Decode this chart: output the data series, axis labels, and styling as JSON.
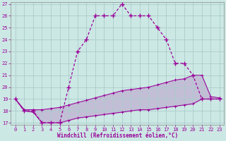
{
  "xlabel": "Windchill (Refroidissement éolien,°C)",
  "hours": [
    0,
    1,
    2,
    3,
    4,
    5,
    6,
    7,
    8,
    9,
    10,
    11,
    12,
    13,
    14,
    15,
    16,
    17,
    18,
    19,
    20,
    21,
    22,
    23
  ],
  "temp_line": [
    19,
    18,
    18,
    17,
    17,
    17,
    20,
    23,
    24,
    26,
    26,
    26,
    27,
    26,
    26,
    26,
    25,
    24,
    22,
    22,
    21,
    19,
    19,
    19
  ],
  "windchill_upper": [
    19,
    18.1,
    18.1,
    18.1,
    18.2,
    18.3,
    18.5,
    18.7,
    18.9,
    19.1,
    19.3,
    19.5,
    19.7,
    19.8,
    19.9,
    20.0,
    20.2,
    20.4,
    20.6,
    20.7,
    21.0,
    21.0,
    19.2,
    19.1
  ],
  "windchill_lower": [
    19,
    18.0,
    17.9,
    17.0,
    17.0,
    17.0,
    17.2,
    17.4,
    17.5,
    17.6,
    17.7,
    17.8,
    17.9,
    18.0,
    18.1,
    18.1,
    18.2,
    18.3,
    18.4,
    18.5,
    18.6,
    19.0,
    19.0,
    19.0
  ],
  "bg_color": "#cce8e4",
  "grid_color": "#aacccc",
  "line_color": "#990099",
  "ylim": [
    17,
    27
  ],
  "xlim": [
    0,
    23
  ],
  "yticks": [
    17,
    18,
    19,
    20,
    21,
    22,
    23,
    24,
    25,
    26,
    27
  ],
  "xticks": [
    0,
    1,
    2,
    3,
    4,
    5,
    6,
    7,
    8,
    9,
    10,
    11,
    12,
    13,
    14,
    15,
    16,
    17,
    18,
    19,
    20,
    21,
    22,
    23
  ]
}
